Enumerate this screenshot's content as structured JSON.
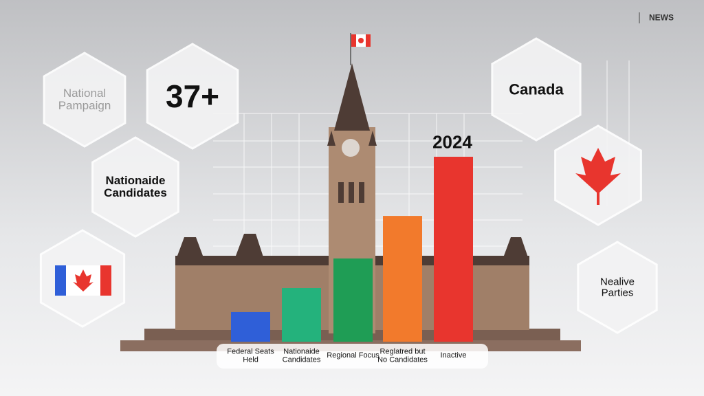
{
  "chart_data": {
    "type": "bar",
    "header": "NEWS",
    "annotation": "2024",
    "categories": [
      "Federal Seats Held",
      "Nationaide Candidates",
      "Regional Focus",
      "Reglatred but No Candidates",
      "Inactive"
    ],
    "values": [
      16,
      29,
      45,
      68,
      100
    ],
    "colors": [
      "#2f5fd8",
      "#24b27c",
      "#1f9d55",
      "#f27a2c",
      "#e8352e"
    ],
    "panels": [
      "National Pampaign",
      "37+",
      "Nationaide Candidates",
      "Canada",
      "Nealive Parties"
    ]
  }
}
